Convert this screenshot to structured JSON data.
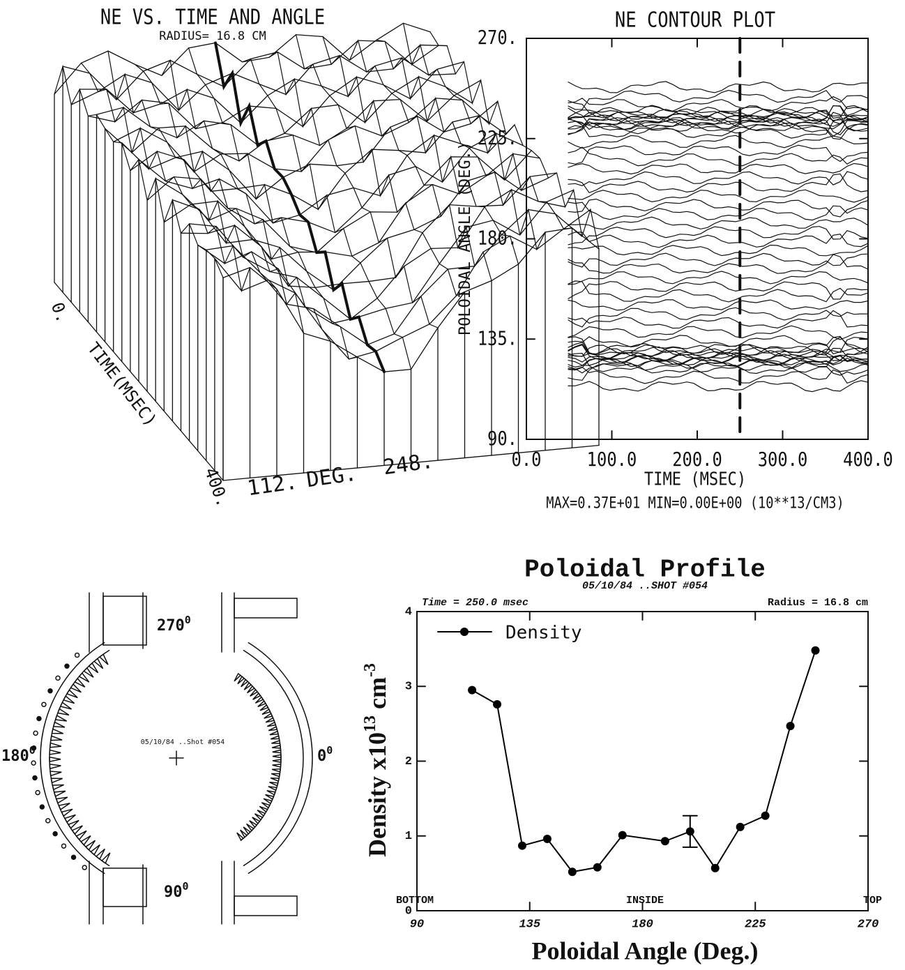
{
  "chart_data": [
    {
      "type": "surface3d",
      "title": "NE VS. TIME AND ANGLE",
      "subtitle": "RADIUS= 16.8 CM",
      "xlabel": "TIME(MSEC)",
      "xtick_labels": [
        "0.",
        "400."
      ],
      "angle_label": "DEG.",
      "angle_tick_labels": [
        "112.",
        "248."
      ]
    },
    {
      "type": "contour",
      "title": "NE CONTOUR PLOT",
      "xlabel": "TIME (MSEC)",
      "ylabel": "POLOIDAL ANGLE (DEG.)",
      "xlim": [
        0,
        400
      ],
      "ylim": [
        90,
        270
      ],
      "xticks": [
        {
          "value": 0,
          "label": "0.0"
        },
        {
          "value": 100,
          "label": "100.0"
        },
        {
          "value": 200,
          "label": "200.0"
        },
        {
          "value": 300,
          "label": "300.0"
        },
        {
          "value": 400,
          "label": "400.0"
        }
      ],
      "yticks": [
        {
          "value": 90,
          "label": "90."
        },
        {
          "value": 135,
          "label": "135."
        },
        {
          "value": 180,
          "label": "180."
        },
        {
          "value": 225,
          "label": "225."
        },
        {
          "value": 270,
          "label": "270."
        }
      ],
      "marker_x": 250,
      "annotation": "MAX=0.37E+01  MIN=0.00E+00 (10**13/CM3)"
    },
    {
      "type": "line",
      "title": "Poloidal Profile",
      "subtitle": "05/10/84 ..SHOT #054",
      "annotations": [
        "Time = 250.0 msec",
        "Radius = 16.8 cm",
        "BOTTOM",
        "INSIDE",
        "TOP"
      ],
      "xlabel": "Poloidal Angle (Deg.)",
      "ylabel": {
        "base": "Density x10",
        "exp": "13",
        "unit": " cm",
        "unit_exp": "-3"
      },
      "x": [
        112,
        122,
        132,
        142,
        152,
        162,
        172,
        189,
        199,
        209,
        219,
        229,
        239,
        249
      ],
      "series": [
        {
          "name": "Density",
          "color": "#000000",
          "values": [
            2.95,
            2.76,
            0.87,
            0.96,
            0.52,
            0.58,
            1.01,
            0.93,
            1.06,
            0.57,
            1.12,
            1.27,
            2.47,
            3.48
          ]
        }
      ],
      "errors": [
        null,
        null,
        null,
        null,
        null,
        null,
        null,
        null,
        0.21,
        null,
        null,
        null,
        null,
        null
      ],
      "xlim": [
        90,
        270
      ],
      "ylim": [
        0,
        4
      ],
      "xticks": [
        90,
        135,
        180,
        225,
        270
      ],
      "yticks": [
        0,
        1,
        2,
        3,
        4
      ],
      "legend": "upper left"
    }
  ],
  "diagram": {
    "labels": [
      {
        "text": "270",
        "sup": "0"
      },
      {
        "text": "180",
        "sup": "0"
      },
      {
        "text": "0",
        "sup": "0"
      },
      {
        "text": "90",
        "sup": "0"
      }
    ],
    "shot": "05/10/84 ..Shot #054"
  }
}
